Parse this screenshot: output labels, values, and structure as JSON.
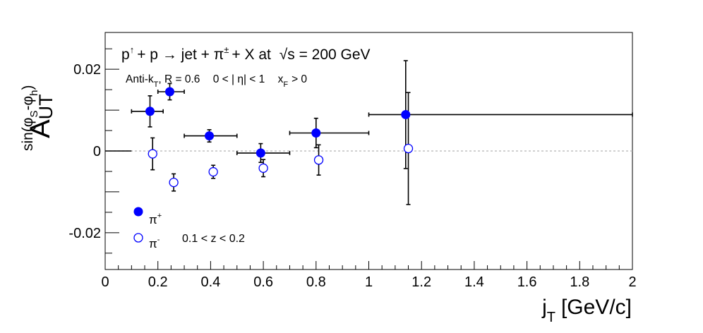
{
  "chart_data": {
    "type": "scatter",
    "title": "p↑ + p → jet + π± + X at √s = 200 GeV",
    "title_parts": {
      "p": "p",
      "up": "↑",
      "plus1": "+ p",
      "arrow": "→",
      "jet": "jet + π",
      "pm": "±",
      "rest": "+ X at",
      "sqrt": "√",
      "s": "s = 200 GeV"
    },
    "subtitle": {
      "algo": "Anti-k",
      "algo_sub": "T",
      "radius": ", R = 0.6",
      "eta": "0 < | η| < 1",
      "xf": "x",
      "xf_sub": "F",
      "xf_cut": "> 0"
    },
    "xlabel": {
      "main": "j",
      "sub": "T",
      "unit": "[GeV/c]"
    },
    "ylabel": {
      "main": "A",
      "sub": "UT",
      "sup_parts": [
        "sin(φ",
        "S",
        "-φ",
        "h",
        ")"
      ]
    },
    "xlim": [
      0,
      2
    ],
    "ylim": [
      -0.029,
      0.029
    ],
    "x_ticks": [
      0,
      0.2,
      0.4,
      0.6,
      0.8,
      1,
      1.2,
      1.4,
      1.6,
      1.8,
      2
    ],
    "x_tick_labels": [
      "0",
      "0.2",
      "0.4",
      "0.6",
      "0.8",
      "1",
      "1.2",
      "1.4",
      "1.6",
      "1.8",
      "2"
    ],
    "y_ticks": [
      -0.02,
      0,
      0.02
    ],
    "y_tick_labels": [
      "-0.02",
      "0",
      "0.02"
    ],
    "zero_line": true,
    "grid": false,
    "legend": {
      "placement": "bottom-left",
      "pi_plus": {
        "base": "π",
        "sup": "+"
      },
      "pi_minus": {
        "base": "π",
        "sup": "-"
      },
      "z_range": "0.1 < z < 0.2"
    },
    "series": [
      {
        "name": "π+",
        "marker": "filled-circle",
        "color": "#0000ff",
        "points": [
          {
            "x": 0.17,
            "y": 0.0097,
            "xerr": [
              0.07,
              0.05
            ],
            "yerr": 0.0038
          },
          {
            "x": 0.245,
            "y": 0.0145,
            "xerr": [
              0.045,
              0.055
            ],
            "yerr": 0.002
          },
          {
            "x": 0.395,
            "y": 0.0037,
            "xerr": [
              0.095,
              0.105
            ],
            "yerr": 0.0015
          },
          {
            "x": 0.59,
            "y": -0.0005,
            "xerr": [
              0.09,
              0.11
            ],
            "yerr": 0.0023
          },
          {
            "x": 0.8,
            "y": 0.0044,
            "xerr": [
              0.1,
              0.2
            ],
            "yerr": 0.0036
          },
          {
            "x": 1.14,
            "y": 0.0089,
            "xerr": [
              0.14,
              0.86
            ],
            "yerr": 0.0132
          }
        ]
      },
      {
        "name": "π-",
        "marker": "open-circle",
        "color": "#0000ff",
        "points": [
          {
            "x": 0.18,
            "y": -0.0007,
            "xerr": [
              0,
              0
            ],
            "yerr": 0.0039
          },
          {
            "x": 0.26,
            "y": -0.0077,
            "xerr": [
              0,
              0
            ],
            "yerr": 0.0021
          },
          {
            "x": 0.41,
            "y": -0.0051,
            "xerr": [
              0,
              0
            ],
            "yerr": 0.0016
          },
          {
            "x": 0.6,
            "y": -0.0042,
            "xerr": [
              0,
              0
            ],
            "yerr": 0.0021
          },
          {
            "x": 0.81,
            "y": -0.0022,
            "xerr": [
              0,
              0
            ],
            "yerr": 0.0037
          },
          {
            "x": 1.15,
            "y": 0.0006,
            "xerr": [
              0,
              0
            ],
            "yerr": 0.0137
          }
        ]
      },
      {
        "name": "",
        "marker": "none",
        "color": "#000000",
        "points": [
          {
            "x": 0.05,
            "y": 0.0,
            "xerr": [
              0.05,
              0.05
            ],
            "yerr": 0
          }
        ]
      }
    ]
  }
}
